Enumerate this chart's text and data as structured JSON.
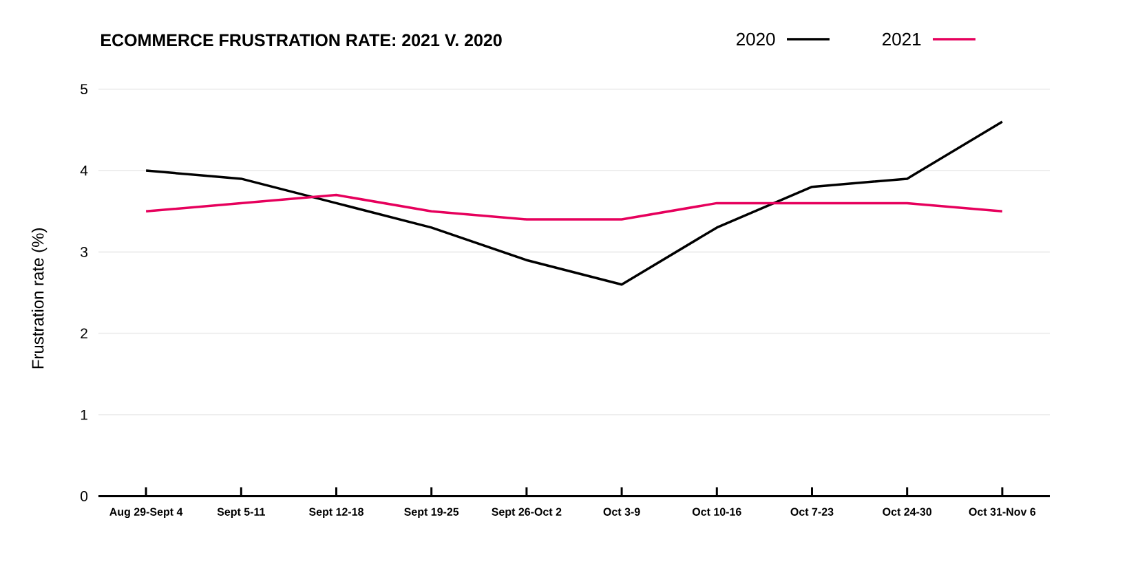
{
  "chart_data": {
    "type": "line",
    "title": "ECOMMERCE FRUSTRATION RATE: 2021 V. 2020",
    "ylabel": "Frustration rate (%)",
    "categories": [
      "Aug 29-Sept 4",
      "Sept 5-11",
      "Sept 12-18",
      "Sept 19-25",
      "Sept 26-Oct 2",
      "Oct 3-9",
      "Oct 10-16",
      "Oct 7-23",
      "Oct 24-30",
      "Oct 31-Nov 6"
    ],
    "series": [
      {
        "name": "2020",
        "color": "#000000",
        "values": [
          4.0,
          3.9,
          3.6,
          3.3,
          2.9,
          2.6,
          3.3,
          3.8,
          3.9,
          4.6
        ]
      },
      {
        "name": "2021",
        "color": "#e6005c",
        "values": [
          3.5,
          3.6,
          3.7,
          3.5,
          3.4,
          3.4,
          3.6,
          3.6,
          3.6,
          3.5
        ]
      }
    ],
    "ylim": [
      0,
      5
    ],
    "yticks": [
      0,
      1,
      2,
      3,
      4,
      5
    ],
    "grid": "y",
    "legend": "top right"
  }
}
